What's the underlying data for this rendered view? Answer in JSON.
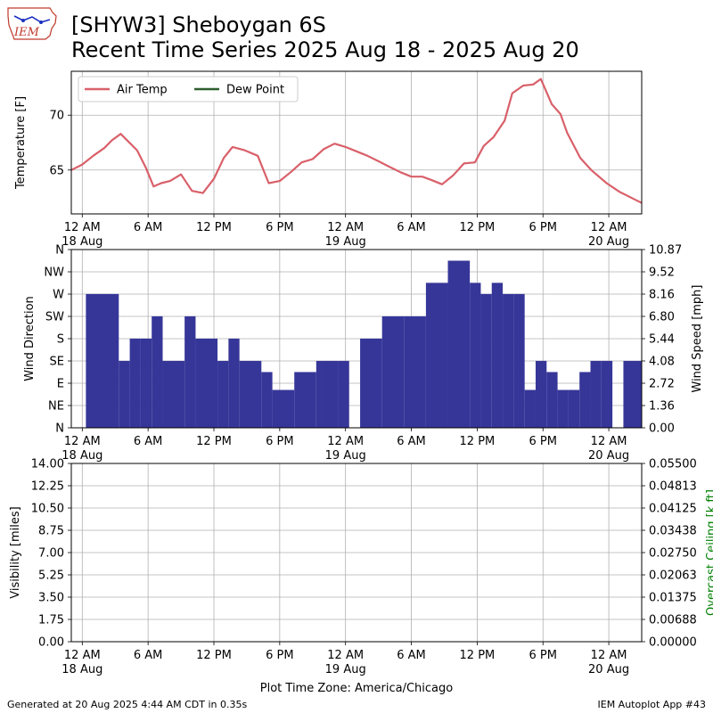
{
  "header": {
    "title_line1": "[SHYW3] Sheboygan 6S",
    "title_line2": "Recent Time Series 2025 Aug 18 - 2025 Aug 20",
    "logo_text": "IEM"
  },
  "footer": {
    "generated": "Generated at 20 Aug 2025 4:44 AM CDT in 0.35s",
    "app": "IEM Autoplot App #43"
  },
  "chart_data": [
    {
      "type": "line",
      "ylabel": "Temperature [F]",
      "xlabel": "",
      "x_unit": "hours since 2025-08-18 00:00 CDT",
      "xlim": [
        -1,
        51
      ],
      "ylim": [
        61,
        74
      ],
      "yticks": [
        65,
        70
      ],
      "xticks": [
        {
          "x": 0,
          "label": "12 AM",
          "sub": "18 Aug"
        },
        {
          "x": 6,
          "label": "6 AM",
          "sub": ""
        },
        {
          "x": 12,
          "label": "12 PM",
          "sub": ""
        },
        {
          "x": 18,
          "label": "6 PM",
          "sub": ""
        },
        {
          "x": 24,
          "label": "12 AM",
          "sub": "19 Aug"
        },
        {
          "x": 30,
          "label": "6 AM",
          "sub": ""
        },
        {
          "x": 36,
          "label": "12 PM",
          "sub": ""
        },
        {
          "x": 42,
          "label": "6 PM",
          "sub": ""
        },
        {
          "x": 48,
          "label": "12 AM",
          "sub": "20 Aug"
        }
      ],
      "grid": true,
      "legend": "upper-left",
      "series": [
        {
          "name": "Air Temp",
          "color": "#d9606a",
          "x": [
            -1,
            0,
            1,
            2,
            2.7,
            3.5,
            4,
            5,
            5.8,
            6.5,
            7.2,
            8,
            9,
            10,
            11,
            12,
            12.9,
            13.7,
            14.8,
            16,
            17,
            18,
            19,
            20,
            21,
            22,
            23,
            24,
            25,
            26,
            27,
            28,
            29,
            30,
            31,
            31.8,
            32.8,
            33.8,
            34.8,
            35.8,
            36.6,
            37.5,
            38.5,
            39.2,
            40.2,
            41.1,
            41.8,
            42.8,
            43.6,
            44.2,
            45.4,
            46.4,
            47.8,
            49,
            50.2,
            51
          ],
          "y": [
            65.0,
            65.5,
            66.3,
            67.0,
            67.7,
            68.3,
            67.8,
            66.8,
            65.2,
            63.5,
            63.8,
            64.0,
            64.6,
            63.1,
            62.9,
            64.2,
            66.1,
            67.1,
            66.8,
            66.3,
            63.8,
            64.0,
            64.8,
            65.7,
            66.0,
            66.9,
            67.4,
            67.1,
            66.7,
            66.3,
            65.8,
            65.3,
            64.8,
            64.4,
            64.4,
            64.1,
            63.7,
            64.5,
            65.6,
            65.7,
            67.2,
            68.0,
            69.5,
            72.0,
            72.7,
            72.8,
            73.3,
            71.0,
            70.1,
            68.4,
            66.1,
            65.0,
            63.8,
            63.0,
            62.4,
            62.0
          ]
        },
        {
          "name": "Dew Point",
          "color": "#2e5e2e",
          "x": [],
          "y": []
        }
      ]
    },
    {
      "type": "bar",
      "ylabel": "Wind Direction",
      "y2label": "Wind Speed [mph]",
      "xlabel": "",
      "x_unit": "hours since 2025-08-18 00:00 CDT",
      "xlim": [
        -1,
        51
      ],
      "ylim": [
        0,
        10.87
      ],
      "yticks_left": [
        "N",
        "NE",
        "E",
        "SE",
        "S",
        "SW",
        "W",
        "NW",
        "N"
      ],
      "yticks_right": [
        "0.00",
        "1.36",
        "2.72",
        "4.08",
        "5.44",
        "6.80",
        "8.16",
        "9.52",
        "10.87"
      ],
      "xticks": [
        {
          "x": 0,
          "label": "12 AM",
          "sub": "18 Aug"
        },
        {
          "x": 6,
          "label": "6 AM",
          "sub": ""
        },
        {
          "x": 12,
          "label": "12 PM",
          "sub": ""
        },
        {
          "x": 18,
          "label": "6 PM",
          "sub": ""
        },
        {
          "x": 24,
          "label": "12 AM",
          "sub": "19 Aug"
        },
        {
          "x": 30,
          "label": "6 AM",
          "sub": ""
        },
        {
          "x": 36,
          "label": "12 PM",
          "sub": ""
        },
        {
          "x": 42,
          "label": "6 PM",
          "sub": ""
        },
        {
          "x": 48,
          "label": "12 AM",
          "sub": "20 Aug"
        }
      ],
      "grid": true,
      "color": "#363699",
      "series": [
        {
          "name": "Wind Speed",
          "x_start": [
            0.33,
            3.33,
            4.33,
            5.33,
            6.33,
            7.33,
            9.33,
            10.33,
            12.33,
            13.33,
            14.33,
            16.33,
            17.33,
            19.33,
            21.33,
            21.83,
            23.33,
            25.33,
            27.33,
            29.33,
            31.33,
            33.33,
            35.33,
            36.33,
            37.33,
            38.33,
            39.33,
            40.33,
            41.33,
            42.33,
            43.33,
            44.33,
            45.33,
            46.33,
            47.33,
            49.33
          ],
          "x_end": [
            3.33,
            4.33,
            5.33,
            6.33,
            7.33,
            9.33,
            10.33,
            12.33,
            13.33,
            14.33,
            16.33,
            17.33,
            19.33,
            21.33,
            21.83,
            23.33,
            24.33,
            27.33,
            29.33,
            31.33,
            33.33,
            35.33,
            36.33,
            37.33,
            38.33,
            39.33,
            40.33,
            41.33,
            42.33,
            43.33,
            44.33,
            45.33,
            46.33,
            47.33,
            48.33,
            52
          ],
          "values": [
            8.16,
            4.08,
            5.44,
            5.44,
            6.8,
            4.08,
            6.8,
            5.44,
            4.08,
            5.44,
            4.08,
            3.4,
            2.31,
            3.4,
            4.08,
            4.08,
            4.08,
            5.44,
            6.8,
            6.8,
            8.84,
            10.19,
            8.84,
            8.16,
            8.84,
            8.16,
            8.16,
            2.31,
            4.08,
            3.4,
            2.31,
            2.31,
            3.4,
            4.08,
            4.08,
            4.08
          ]
        }
      ]
    },
    {
      "type": "line",
      "ylabel": "Visibility [miles]",
      "y2label": "Overcast Ceiling [k ft]",
      "y2label_color": "#008000",
      "xlabel": "Plot Time Zone: America/Chicago",
      "x_unit": "hours since 2025-08-18 00:00 CDT",
      "xlim": [
        -1,
        51
      ],
      "ylim": [
        0,
        14
      ],
      "yticks_left": [
        "0.00",
        "1.75",
        "3.50",
        "5.25",
        "7.00",
        "8.75",
        "10.50",
        "12.25",
        "14.00"
      ],
      "yticks_right": [
        "0.00000",
        "0.00688",
        "0.01375",
        "0.02063",
        "0.02750",
        "0.03438",
        "0.04125",
        "0.04813",
        "0.05500"
      ],
      "xticks": [
        {
          "x": 0,
          "label": "12 AM",
          "sub": "18 Aug"
        },
        {
          "x": 6,
          "label": "6 AM",
          "sub": ""
        },
        {
          "x": 12,
          "label": "12 PM",
          "sub": ""
        },
        {
          "x": 18,
          "label": "6 PM",
          "sub": ""
        },
        {
          "x": 24,
          "label": "12 AM",
          "sub": "19 Aug"
        },
        {
          "x": 30,
          "label": "6 AM",
          "sub": ""
        },
        {
          "x": 36,
          "label": "12 PM",
          "sub": ""
        },
        {
          "x": 42,
          "label": "6 PM",
          "sub": ""
        },
        {
          "x": 48,
          "label": "12 AM",
          "sub": "20 Aug"
        }
      ],
      "grid": true,
      "series": []
    }
  ]
}
